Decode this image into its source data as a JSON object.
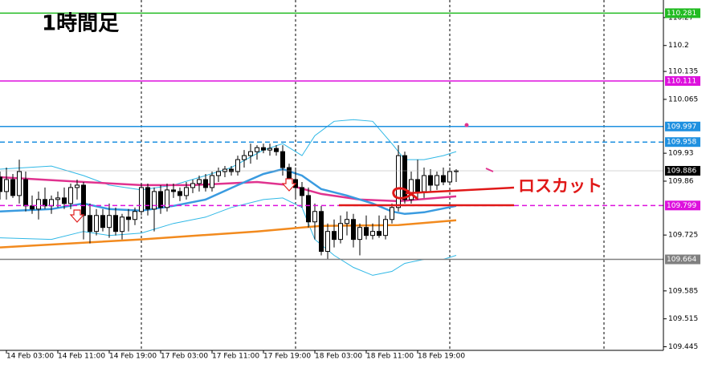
{
  "chart_data": {
    "type": "candlestick",
    "title": "1時間足",
    "annotation": "ロスカット",
    "xlim": [
      0,
      103.25
    ],
    "ylim": [
      109.436,
      110.314
    ],
    "xticks": [
      {
        "value": 1,
        "label": "14 Feb 03:00"
      },
      {
        "value": 9,
        "label": "14 Feb 11:00"
      },
      {
        "value": 17,
        "label": "14 Feb 19:00"
      },
      {
        "value": 25,
        "label": "17 Feb 03:00"
      },
      {
        "value": 33,
        "label": "17 Feb 11:00"
      },
      {
        "value": 41,
        "label": "17 Feb 19:00"
      },
      {
        "value": 49,
        "label": "18 Feb 03:00"
      },
      {
        "value": 57,
        "label": "18 Feb 11:00"
      },
      {
        "value": 65,
        "label": "18 Feb 19:00"
      }
    ],
    "yticks": [
      110.27,
      110.2,
      110.135,
      110.065,
      109.93,
      109.86,
      109.725,
      109.585,
      109.515,
      109.445
    ],
    "period_separators": [
      22,
      46,
      70,
      94
    ],
    "candles": {
      "bull_color": "#ffffff",
      "bear_color": "#000000",
      "open": [
        109.87,
        109.834,
        109.864,
        109.824,
        109.864,
        109.798,
        109.79,
        109.814,
        109.798,
        109.814,
        109.818,
        109.804,
        109.844,
        109.85,
        109.774,
        109.734,
        109.774,
        109.744,
        109.774,
        109.734,
        109.77,
        109.764,
        109.784,
        109.844,
        109.79,
        109.834,
        109.794,
        109.838,
        109.834,
        109.824,
        109.844,
        109.854,
        109.864,
        109.844,
        109.874,
        109.884,
        109.89,
        109.884,
        109.914,
        109.924,
        109.934,
        109.944,
        109.938,
        109.942,
        109.934,
        109.894,
        109.864,
        109.844,
        109.824,
        109.758,
        109.784,
        109.684,
        109.734,
        109.714,
        109.754,
        109.764,
        109.714,
        109.744,
        109.724,
        109.734,
        109.724,
        109.764,
        109.794,
        109.924,
        109.814,
        109.864,
        109.834,
        109.874,
        109.85,
        109.874,
        109.858,
        109.884
      ],
      "high": [
        109.884,
        109.894,
        109.878,
        109.914,
        109.884,
        109.824,
        109.834,
        109.844,
        109.824,
        109.834,
        109.844,
        109.854,
        109.864,
        109.858,
        109.804,
        109.79,
        109.79,
        109.804,
        109.794,
        109.778,
        109.79,
        109.794,
        109.854,
        109.854,
        109.844,
        109.85,
        109.854,
        109.854,
        109.844,
        109.858,
        109.864,
        109.874,
        109.878,
        109.884,
        109.894,
        109.898,
        109.898,
        109.924,
        109.938,
        109.954,
        109.95,
        109.954,
        109.954,
        109.95,
        109.95,
        109.904,
        109.894,
        109.858,
        109.844,
        109.804,
        109.798,
        109.754,
        109.764,
        109.774,
        109.784,
        109.778,
        109.754,
        109.774,
        109.754,
        109.774,
        109.774,
        109.804,
        109.95,
        109.934,
        109.884,
        109.914,
        109.894,
        109.89,
        109.884,
        109.894,
        109.894,
        109.89
      ],
      "low": [
        109.814,
        109.814,
        109.818,
        109.804,
        109.784,
        109.778,
        109.764,
        109.79,
        109.778,
        109.794,
        109.79,
        109.79,
        109.814,
        109.714,
        109.704,
        109.724,
        109.734,
        109.718,
        109.724,
        109.714,
        109.734,
        109.75,
        109.774,
        109.774,
        109.734,
        109.778,
        109.784,
        109.818,
        109.81,
        109.814,
        109.83,
        109.834,
        109.834,
        109.834,
        109.858,
        109.87,
        109.874,
        109.874,
        109.894,
        109.904,
        109.914,
        109.93,
        109.924,
        109.924,
        109.874,
        109.844,
        109.814,
        109.794,
        109.744,
        109.714,
        109.674,
        109.664,
        109.694,
        109.704,
        109.724,
        109.694,
        109.674,
        109.714,
        109.714,
        109.718,
        109.714,
        109.754,
        109.784,
        109.804,
        109.804,
        109.814,
        109.818,
        109.834,
        109.838,
        109.85,
        109.854,
        109.858
      ],
      "close": [
        109.834,
        109.864,
        109.824,
        109.884,
        109.798,
        109.79,
        109.814,
        109.798,
        109.814,
        109.818,
        109.804,
        109.844,
        109.85,
        109.774,
        109.734,
        109.774,
        109.744,
        109.774,
        109.734,
        109.77,
        109.764,
        109.784,
        109.844,
        109.79,
        109.834,
        109.794,
        109.838,
        109.834,
        109.824,
        109.844,
        109.854,
        109.864,
        109.844,
        109.874,
        109.884,
        109.89,
        109.884,
        109.914,
        109.924,
        109.934,
        109.944,
        109.938,
        109.942,
        109.934,
        109.894,
        109.864,
        109.844,
        109.824,
        109.758,
        109.784,
        109.684,
        109.734,
        109.714,
        109.754,
        109.764,
        109.714,
        109.744,
        109.724,
        109.734,
        109.724,
        109.764,
        109.794,
        109.924,
        109.814,
        109.864,
        109.834,
        109.874,
        109.85,
        109.874,
        109.858,
        109.884,
        109.886
      ]
    },
    "lines": [
      {
        "color": "#2fb8e6",
        "x": [
          0,
          8,
          13,
          17,
          22,
          27,
          32,
          36,
          41,
          44,
          47,
          49,
          52,
          55,
          58,
          61,
          63,
          66,
          69,
          71
        ],
        "values": [
          109.89,
          109.898,
          109.874,
          109.85,
          109.838,
          109.85,
          109.874,
          109.894,
          109.938,
          109.954,
          109.924,
          109.974,
          110.01,
          110.014,
          110.01,
          109.954,
          109.914,
          109.914,
          109.924,
          109.934
        ]
      },
      {
        "color": "#2fb8e6",
        "x": [
          0,
          8,
          13,
          17,
          22,
          27,
          32,
          36,
          41,
          44,
          47,
          49,
          52,
          55,
          58,
          61,
          63,
          66,
          69,
          71
        ],
        "values": [
          109.718,
          109.714,
          109.734,
          109.724,
          109.73,
          109.754,
          109.77,
          109.794,
          109.814,
          109.818,
          109.794,
          109.714,
          109.674,
          109.644,
          109.624,
          109.634,
          109.654,
          109.664,
          109.664,
          109.674
        ]
      },
      {
        "color": "#f28a1e",
        "x": [
          0,
          22,
          40,
          50,
          62,
          71
        ],
        "values": [
          109.694,
          109.714,
          109.734,
          109.748,
          109.75,
          109.762
        ]
      },
      {
        "color": "#e0338f",
        "x": [
          0,
          13,
          22,
          30,
          40,
          45,
          50,
          56,
          62,
          71
        ],
        "values": [
          109.87,
          109.858,
          109.85,
          109.85,
          109.858,
          109.85,
          109.828,
          109.814,
          109.81,
          109.822
        ]
      },
      {
        "color": "#3a9be0",
        "x": [
          0,
          8,
          13,
          17,
          22,
          27,
          32,
          37,
          41,
          44,
          47,
          50,
          54,
          58,
          61,
          63,
          66,
          71
        ],
        "values": [
          109.784,
          109.79,
          109.804,
          109.79,
          109.786,
          109.798,
          109.814,
          109.85,
          109.878,
          109.89,
          109.874,
          109.84,
          109.824,
          109.804,
          109.784,
          109.778,
          109.782,
          109.798
        ]
      }
    ],
    "levels": [
      {
        "value": 110.281,
        "color": "#22bb22",
        "style": "solid"
      },
      {
        "value": 110.111,
        "color": "#dd11dd",
        "style": "solid"
      },
      {
        "value": 109.997,
        "color": "#1e90e0",
        "style": "solid"
      },
      {
        "value": 109.958,
        "color": "#1e90e0",
        "style": "dashed"
      },
      {
        "value": 109.886,
        "color": "#000000",
        "style": "thin"
      },
      {
        "value": 109.799,
        "color": "#dd11dd",
        "style": "dashed"
      },
      {
        "value": 109.664,
        "color": "#808080",
        "style": "solid"
      }
    ]
  }
}
